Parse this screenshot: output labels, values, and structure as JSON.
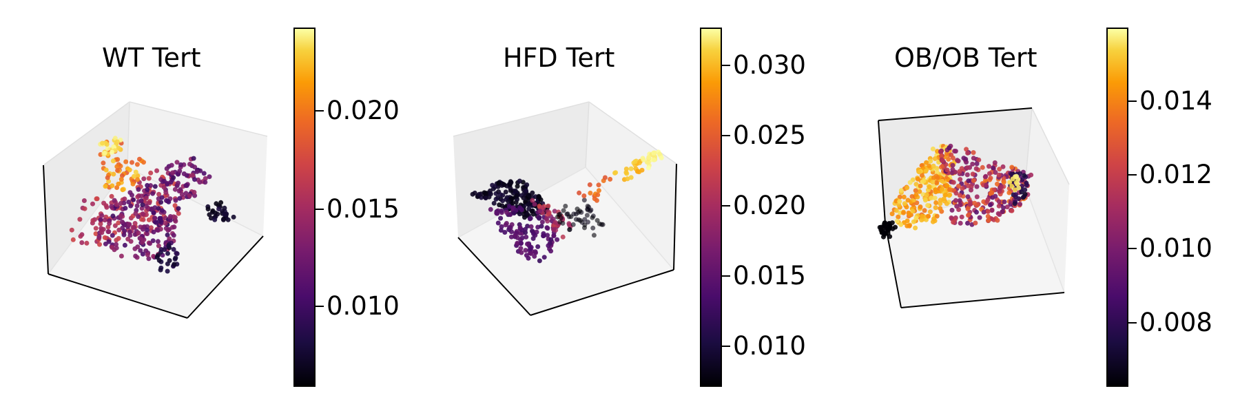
{
  "chart_data": [
    {
      "type": "scatter",
      "projection": "3d",
      "title": "WT Tert",
      "colormap": "inferno",
      "colorbar": {
        "ticks": [
          0.01,
          0.015,
          0.02
        ],
        "tick_labels": [
          "0.010",
          "0.015",
          "0.020"
        ],
        "range": [
          0.0059,
          0.0243
        ]
      },
      "axes": {
        "grid": false,
        "panes": "light gray"
      }
    },
    {
      "type": "scatter",
      "projection": "3d",
      "title": "HFD Tert",
      "colormap": "inferno",
      "colorbar": {
        "ticks": [
          0.01,
          0.015,
          0.02,
          0.025,
          0.03
        ],
        "tick_labels": [
          "0.010",
          "0.015",
          "0.020",
          "0.025",
          "0.030"
        ],
        "range": [
          0.007,
          0.0323
        ]
      },
      "axes": {
        "grid": false,
        "panes": "light gray"
      }
    },
    {
      "type": "scatter",
      "projection": "3d",
      "title": "OB/OB Tert",
      "colormap": "inferno",
      "colorbar": {
        "ticks": [
          0.008,
          0.01,
          0.012,
          0.014
        ],
        "tick_labels": [
          "0.008",
          "0.010",
          "0.012",
          "0.014"
        ],
        "range": [
          0.0063,
          0.0159
        ]
      },
      "axes": {
        "grid": false,
        "panes": "light gray"
      }
    }
  ]
}
